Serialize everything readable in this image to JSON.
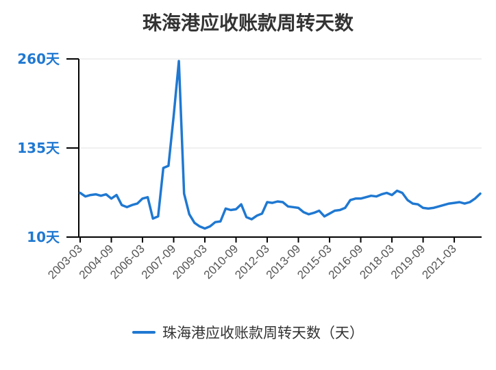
{
  "title": "珠海港应收账款周转天数",
  "colors": {
    "line": "#1f78d1",
    "axis_label": "#1f78d1",
    "grid": "#e0e0e0",
    "axis": "#000000",
    "tick_text": "#555555"
  },
  "chart_data": {
    "type": "line",
    "title": "珠海港应收账款周转天数",
    "ylabel": "",
    "xlabel": "",
    "y_unit": "天",
    "yticks": [
      "260天",
      "135天",
      "10天"
    ],
    "ytick_values": [
      260,
      135,
      10
    ],
    "ylim": [
      10,
      260
    ],
    "xtick_labels": [
      "2003-03",
      "2004-09",
      "2006-03",
      "2007-09",
      "2009-03",
      "2010-09",
      "2012-03",
      "2013-09",
      "2015-03",
      "2016-09",
      "2018-03",
      "2019-09",
      "2021-03"
    ],
    "grid": true,
    "legend_position": "bottom",
    "series": [
      {
        "name": "珠海港应收账款周转天数（天）",
        "x": [
          "2003-03",
          "2003-06",
          "2003-09",
          "2003-12",
          "2004-03",
          "2004-06",
          "2004-09",
          "2004-12",
          "2005-03",
          "2005-06",
          "2005-09",
          "2005-12",
          "2006-03",
          "2006-06",
          "2006-09",
          "2006-12",
          "2007-03",
          "2007-06",
          "2007-09",
          "2007-12",
          "2008-03",
          "2008-06",
          "2008-09",
          "2008-12",
          "2009-03",
          "2009-06",
          "2009-09",
          "2009-12",
          "2010-03",
          "2010-06",
          "2010-09",
          "2010-12",
          "2011-03",
          "2011-06",
          "2011-09",
          "2011-12",
          "2012-03",
          "2012-06",
          "2012-09",
          "2012-12",
          "2013-03",
          "2013-06",
          "2013-09",
          "2013-12",
          "2014-03",
          "2014-06",
          "2014-09",
          "2014-12",
          "2015-03",
          "2015-06",
          "2015-09",
          "2015-12",
          "2016-03",
          "2016-06",
          "2016-09",
          "2016-12",
          "2017-03",
          "2017-06",
          "2017-09",
          "2017-12",
          "2018-03",
          "2018-06",
          "2018-09",
          "2018-12",
          "2019-03",
          "2019-06",
          "2019-09",
          "2019-12",
          "2020-03",
          "2020-06",
          "2020-09",
          "2020-12",
          "2021-03",
          "2021-06",
          "2021-09",
          "2021-12",
          "2022-03",
          "2022-06"
        ],
        "values": [
          72,
          67,
          69,
          70,
          68,
          70,
          64,
          69,
          55,
          52,
          55,
          57,
          64,
          66,
          36,
          39,
          107,
          110,
          180,
          257,
          71,
          42,
          30,
          25,
          22,
          25,
          31,
          32,
          50,
          48,
          49,
          56,
          38,
          35,
          40,
          43,
          59,
          58,
          60,
          59,
          53,
          52,
          51,
          45,
          42,
          44,
          47,
          39,
          43,
          47,
          48,
          51,
          62,
          64,
          64,
          66,
          68,
          67,
          70,
          72,
          69,
          75,
          72,
          62,
          57,
          56,
          51,
          50,
          51,
          53,
          55,
          57,
          58,
          59,
          57,
          59,
          64,
          71
        ]
      }
    ]
  },
  "legend": {
    "label": "珠海港应收账款周转天数（天）"
  }
}
